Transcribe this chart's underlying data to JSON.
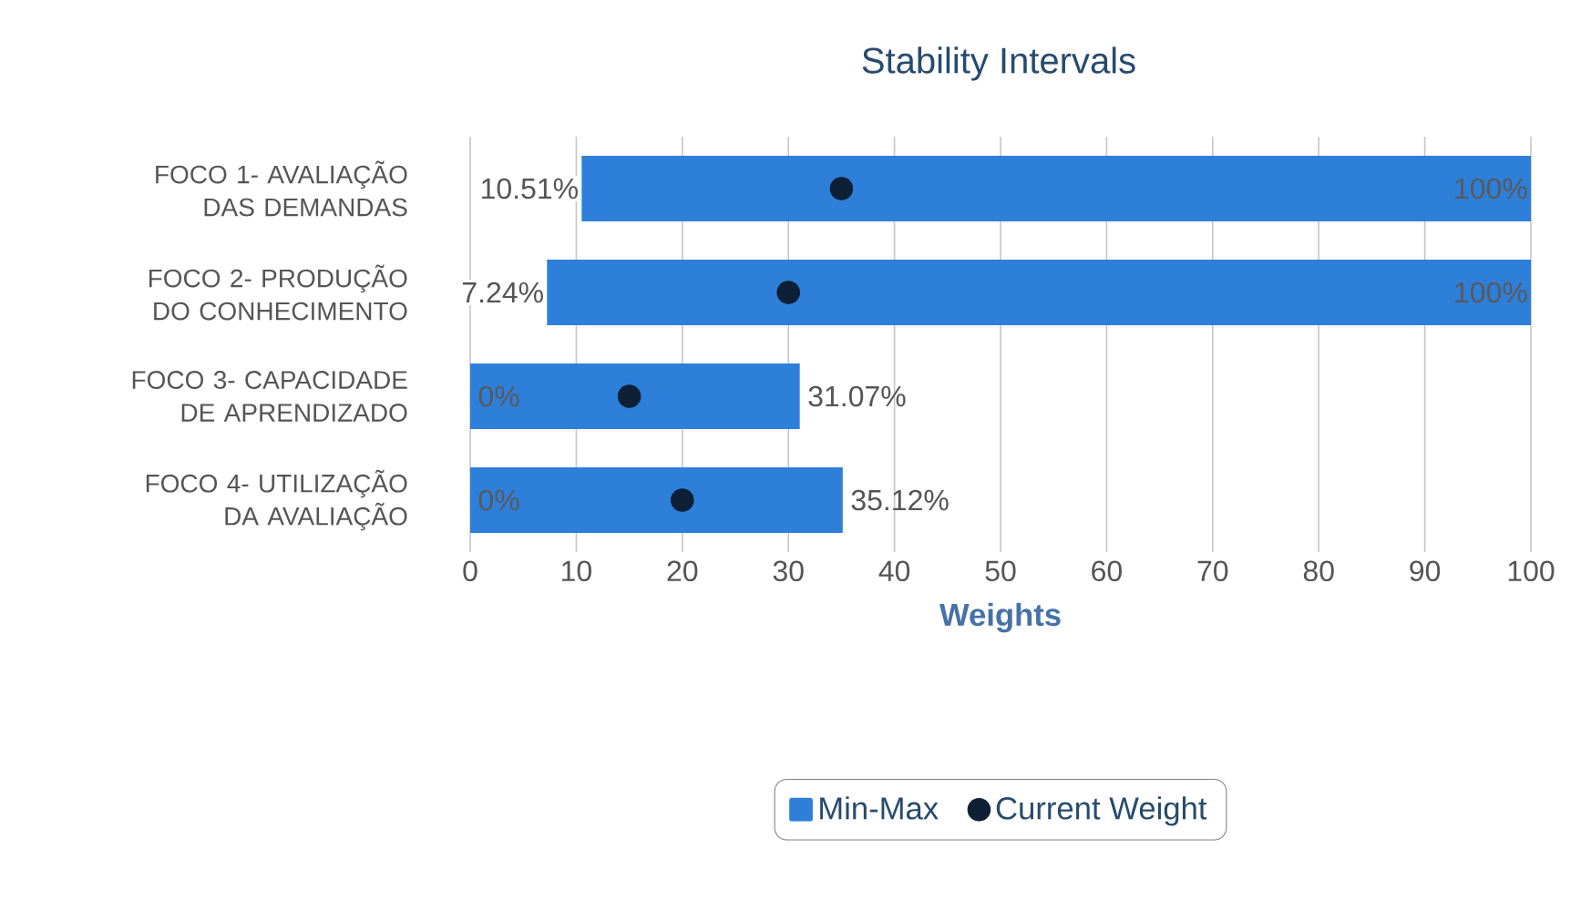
{
  "chart_data": {
    "type": "bar",
    "orientation": "horizontal",
    "title": "Stability Intervals",
    "xlabel": "Weights",
    "categories": [
      "FOCO 1- AVALIAÇÃO DAS DEMANDAS",
      "FOCO 2- PRODUÇÃO DO CONHECIMENTO",
      "FOCO 3- CAPACIDADE DE APRENDIZADO",
      "FOCO 4- UTILIZAÇÃO DA AVALIAÇÃO"
    ],
    "xlim": [
      0,
      100
    ],
    "xticks": [
      0,
      10,
      20,
      30,
      40,
      50,
      60,
      70,
      80,
      90,
      100
    ],
    "grid": "x",
    "legend": "bottom",
    "series": [
      {
        "name": "Min-Max",
        "color": "#2e7fd9",
        "base": [
          10.51,
          7.24,
          0,
          0
        ],
        "values": [
          89.49,
          92.76,
          31.07,
          35.12
        ]
      },
      {
        "name": "Current Weight",
        "type": "scatter",
        "color": "#0d2036",
        "marker": "circle",
        "values": [
          35,
          30,
          15,
          20
        ]
      }
    ],
    "annotations": [
      "10.51%",
      "100%",
      "7.24%",
      "100%",
      "0%",
      "31.07%",
      "0%",
      "35.12%"
    ]
  }
}
